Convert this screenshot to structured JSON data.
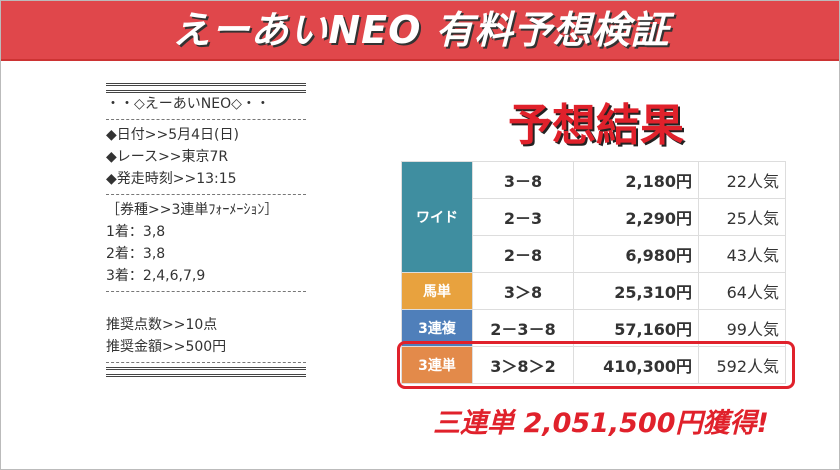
{
  "header": {
    "title": "えーあいNEO 有料予想検証"
  },
  "left": {
    "sections": [
      [
        "・・◇えーあいNEO◇・・"
      ],
      [
        "◆日付>>5月4日(日)",
        "◆レース>>東京7R",
        "◆発走時刻>>13:15"
      ],
      [
        "［券種>>3連単ﾌｫｰﾒｰｼｮﾝ］",
        "1着：3,8",
        "2着：3,8",
        "3着：2,4,6,7,9"
      ],
      [
        "推奨点数>>10点",
        "推奨金額>>500円"
      ]
    ]
  },
  "result_title": "予想結果",
  "table": {
    "groups": [
      {
        "label": "ワイド",
        "color": "#3f8ea0",
        "rows": [
          [
            "3－8",
            "2,180円",
            "22人気"
          ],
          [
            "2－3",
            "2,290円",
            "25人気"
          ],
          [
            "2－8",
            "6,980円",
            "43人気"
          ]
        ]
      },
      {
        "label": "馬単",
        "color": "#e8a23e",
        "rows": [
          [
            "3＞8",
            "25,310円",
            "64人気"
          ]
        ]
      },
      {
        "label": "3連複",
        "color": "#4f7fba",
        "rows": [
          [
            "2－3－8",
            "57,160円",
            "99人気"
          ]
        ]
      },
      {
        "label": "3連単",
        "color": "#e38a4a",
        "rows": [
          [
            "3＞8＞2",
            "410,300円",
            "592人気"
          ]
        ]
      }
    ]
  },
  "total": "三連単 2,051,500円獲得!"
}
